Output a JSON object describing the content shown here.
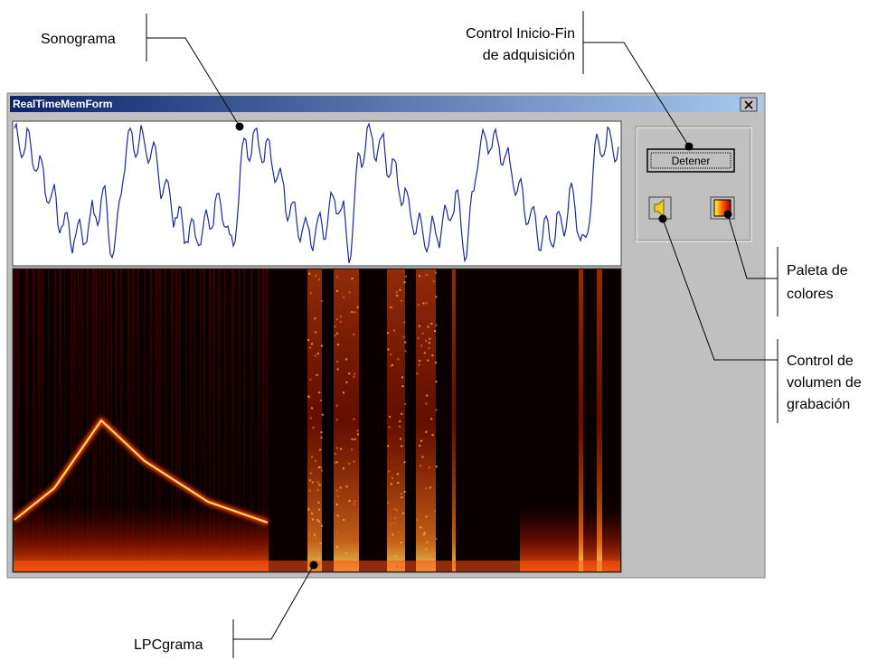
{
  "window": {
    "title": "RealTimeMemForm",
    "button": "Detener"
  },
  "annotations": [
    {
      "lines": [
        "Sonograma"
      ]
    },
    {
      "lines": [
        "Control Inicio-Fin",
        "de adquisición"
      ]
    },
    {
      "lines": [
        "Paleta de",
        "colores"
      ]
    },
    {
      "lines": [
        "Control de",
        "volumen de",
        "grabación"
      ]
    },
    {
      "lines": [
        "LPCgrama"
      ]
    }
  ]
}
